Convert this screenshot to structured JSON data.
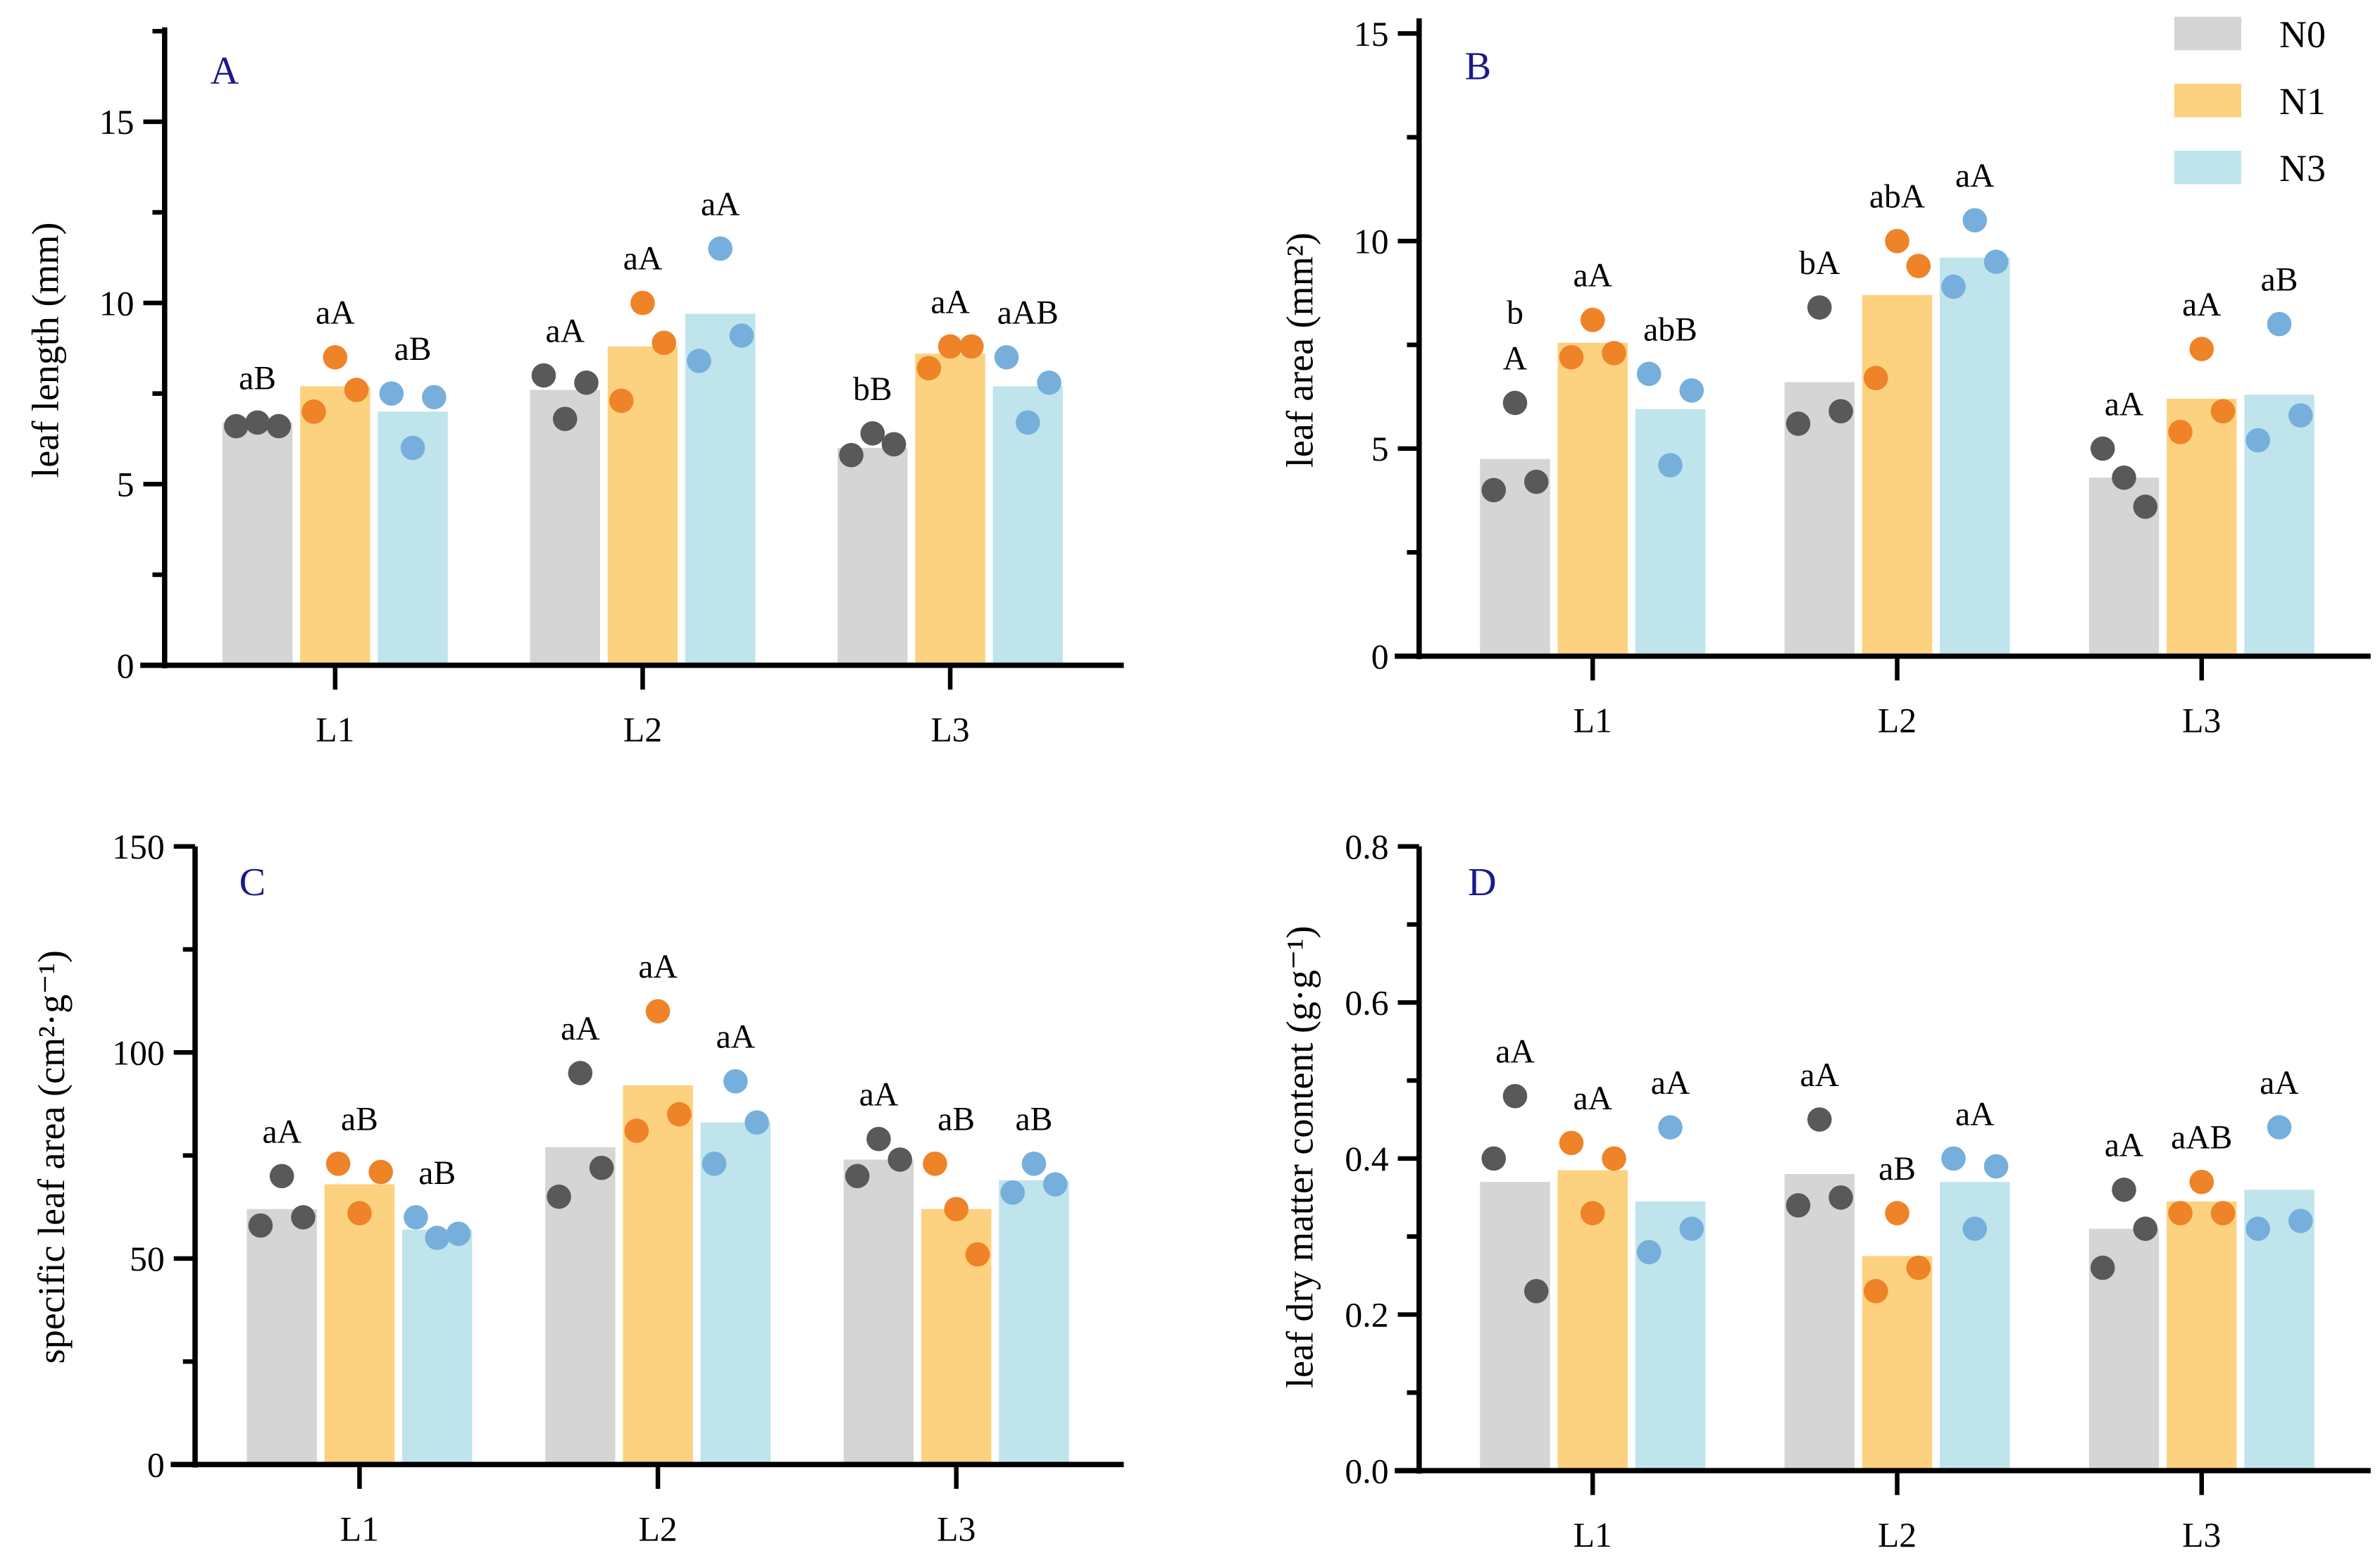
{
  "colors": {
    "bar": {
      "N0": "#d5d5d5",
      "N1": "#fcd17f",
      "N3": "#bfe4ec"
    },
    "dot": {
      "N0": "#595959",
      "N1": "#ee8327",
      "N3": "#76afdb"
    },
    "panel_letter": "#1a1a8c"
  },
  "legend": {
    "placement": "top-right of panel B",
    "entries": [
      "N0",
      "N1",
      "N3"
    ]
  },
  "chart_data": [
    {
      "type": "bar",
      "panel": "A",
      "ylabel": "leaf length (mm)",
      "xlabel": "",
      "categories": [
        "L1",
        "L2",
        "L3"
      ],
      "ylim": [
        0,
        17.5
      ],
      "yticks": [
        "0",
        "5",
        "10",
        "15"
      ],
      "ytick_values": [
        0,
        5,
        10,
        15
      ],
      "minor_step": 2.5,
      "series": [
        {
          "name": "N0",
          "values": [
            6.7,
            7.6,
            6.0
          ],
          "points": [
            [
              6.6,
              6.7,
              6.6
            ],
            [
              8.0,
              6.8,
              7.8
            ],
            [
              5.8,
              6.4,
              6.1
            ]
          ],
          "labels": [
            "aB",
            "aA",
            "bB"
          ]
        },
        {
          "name": "N1",
          "values": [
            7.7,
            8.8,
            8.6
          ],
          "points": [
            [
              7.0,
              8.5,
              7.6
            ],
            [
              7.3,
              10.0,
              8.9
            ],
            [
              8.2,
              8.8,
              8.8
            ]
          ],
          "labels": [
            "aA",
            "aA",
            "aA"
          ]
        },
        {
          "name": "N3",
          "values": [
            7.0,
            9.7,
            7.7
          ],
          "points": [
            [
              7.5,
              6.0,
              7.4
            ],
            [
              8.4,
              11.5,
              9.1
            ],
            [
              8.5,
              6.7,
              7.8
            ]
          ],
          "labels": [
            "aB",
            "aA",
            "aAB"
          ]
        }
      ]
    },
    {
      "type": "bar",
      "panel": "B",
      "ylabel": "leaf area (mm²)",
      "xlabel": "",
      "categories": [
        "L1",
        "L2",
        "L3"
      ],
      "ylim": [
        0,
        15
      ],
      "yticks": [
        "0",
        "5",
        "10",
        "15"
      ],
      "ytick_values": [
        0,
        5,
        10,
        15
      ],
      "minor_step": 2.5,
      "series": [
        {
          "name": "N0",
          "values": [
            4.75,
            6.6,
            4.3
          ],
          "points": [
            [
              4.0,
              6.1,
              4.2
            ],
            [
              5.6,
              8.4,
              5.9
            ],
            [
              5.0,
              4.3,
              3.6
            ]
          ],
          "labels": [
            "b\nA",
            "bA",
            "aA"
          ]
        },
        {
          "name": "N1",
          "values": [
            7.55,
            8.7,
            6.2
          ],
          "points": [
            [
              7.2,
              8.1,
              7.3
            ],
            [
              6.7,
              10.0,
              9.4
            ],
            [
              5.4,
              7.4,
              5.9
            ]
          ],
          "labels": [
            "aA",
            "abA",
            "aA"
          ]
        },
        {
          "name": "N3",
          "values": [
            5.95,
            9.6,
            6.3
          ],
          "points": [
            [
              6.8,
              4.6,
              6.4
            ],
            [
              8.9,
              10.5,
              9.5
            ],
            [
              5.2,
              8.0,
              5.8
            ]
          ],
          "labels": [
            "abB",
            "aA",
            "aB"
          ]
        }
      ]
    },
    {
      "type": "bar",
      "panel": "C",
      "ylabel": "specific leaf area (cm²·g⁻¹)",
      "xlabel": "",
      "categories": [
        "L1",
        "L2",
        "L3"
      ],
      "ylim": [
        0,
        150
      ],
      "yticks": [
        "0",
        "50",
        "100",
        "150"
      ],
      "ytick_values": [
        0,
        50,
        100,
        150
      ],
      "minor_step": 25,
      "series": [
        {
          "name": "N0",
          "values": [
            62,
            77,
            74
          ],
          "points": [
            [
              58,
              70,
              60
            ],
            [
              65,
              95,
              72
            ],
            [
              70,
              79,
              74
            ]
          ],
          "labels": [
            "aA",
            "aA",
            "aA"
          ]
        },
        {
          "name": "N1",
          "values": [
            68,
            92,
            62
          ],
          "points": [
            [
              73,
              61,
              71
            ],
            [
              81,
              110,
              85
            ],
            [
              73,
              62,
              51
            ]
          ],
          "labels": [
            "aB",
            "aA",
            "aB"
          ]
        },
        {
          "name": "N3",
          "values": [
            57,
            83,
            69
          ],
          "points": [
            [
              60,
              55,
              56
            ],
            [
              73,
              93,
              83
            ],
            [
              66,
              73,
              68
            ]
          ],
          "labels": [
            "aB",
            "aA",
            "aB"
          ]
        }
      ]
    },
    {
      "type": "bar",
      "panel": "D",
      "ylabel": "leaf dry matter content (g·g⁻¹)",
      "xlabel": "",
      "categories": [
        "L1",
        "L2",
        "L3"
      ],
      "ylim": [
        0,
        0.8
      ],
      "yticks": [
        "0.0",
        "0.2",
        "0.4",
        "0.6",
        "0.8"
      ],
      "ytick_values": [
        0,
        0.2,
        0.4,
        0.6,
        0.8
      ],
      "minor_step": 0.1,
      "series": [
        {
          "name": "N0",
          "values": [
            0.37,
            0.38,
            0.31
          ],
          "points": [
            [
              0.4,
              0.48,
              0.23
            ],
            [
              0.34,
              0.45,
              0.35
            ],
            [
              0.26,
              0.36,
              0.31
            ]
          ],
          "labels": [
            "aA",
            "aA",
            "aA"
          ]
        },
        {
          "name": "N1",
          "values": [
            0.385,
            0.275,
            0.345
          ],
          "points": [
            [
              0.42,
              0.33,
              0.4
            ],
            [
              0.23,
              0.33,
              0.26
            ],
            [
              0.33,
              0.37,
              0.33
            ]
          ],
          "labels": [
            "aA",
            "aB",
            "aAB"
          ]
        },
        {
          "name": "N3",
          "values": [
            0.345,
            0.37,
            0.36
          ],
          "points": [
            [
              0.28,
              0.44,
              0.31
            ],
            [
              0.4,
              0.31,
              0.39
            ],
            [
              0.31,
              0.44,
              0.32
            ]
          ],
          "labels": [
            "aA",
            "aA",
            "aA"
          ]
        }
      ]
    }
  ]
}
